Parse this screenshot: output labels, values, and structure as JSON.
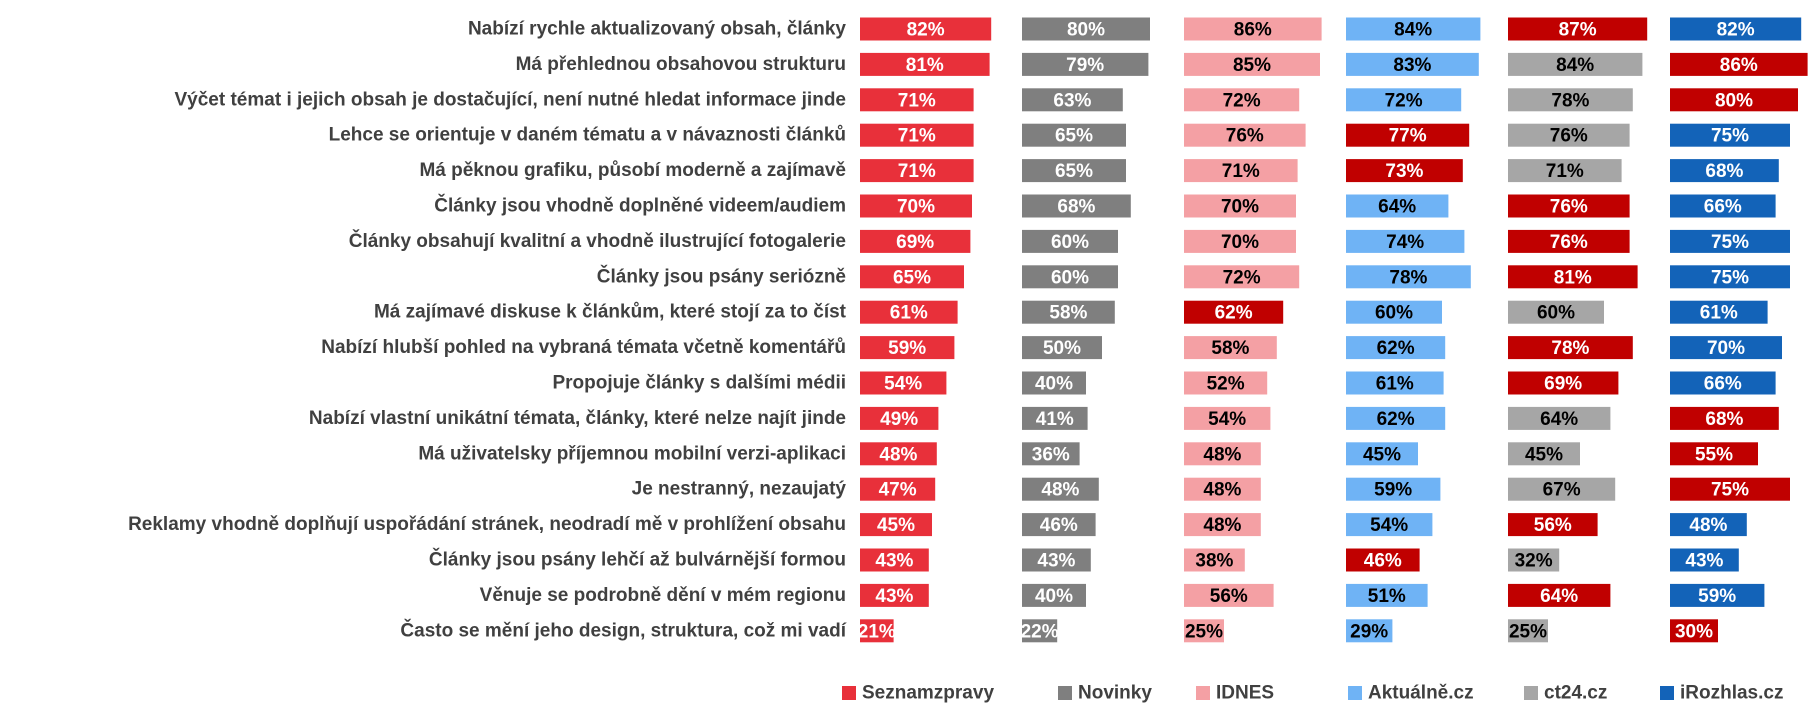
{
  "chart_data": {
    "type": "bar",
    "orientation": "horizontal",
    "categories": [
      "Nabízí rychle aktualizovaný obsah, články",
      "Má přehlednou obsahovou strukturu",
      "Výčet témat i jejich obsah je dostačující, není nutné hledat informace jinde",
      "Lehce se orientuje v daném tématu a v návaznosti článků",
      "Má pěknou grafiku, působí moderně a zajímavě",
      "Články jsou vhodně doplněné videem/audiem",
      "Články obsahují kvalitní a vhodně ilustrující fotogalerie",
      "Články jsou psány seriózně",
      "Má zajímavé diskuse k článkům, které stojí za to číst",
      "Nabízí hlubší pohled na vybraná témata včetně komentářů",
      "Propojuje články s dalšími médii",
      "Nabízí vlastní unikátní témata, články, které nelze najít jinde",
      "Má uživatelsky příjemnou mobilní verzi-aplikaci",
      "Je nestranný, nezaujatý",
      "Reklamy vhodně doplňují uspořádání stránek, neodradí mě v prohlížení obsahu",
      "Články jsou psány lehčí až bulvárnější formou",
      "Věnuje se podrobně dění v mém regionu",
      "Často se mění jeho design, struktura, což mi vadí"
    ],
    "xlim": [
      0,
      100
    ],
    "series": [
      {
        "name": "Seznamzpravy",
        "color": "#e8303a",
        "values": [
          82,
          81,
          71,
          71,
          71,
          70,
          69,
          65,
          61,
          59,
          54,
          49,
          48,
          47,
          45,
          43,
          43,
          21
        ],
        "value_labels": [
          "82%",
          "81%",
          "71%",
          "71%",
          "71%",
          "70%",
          "69%",
          "65%",
          "61%",
          "59%",
          "54%",
          "49%",
          "48%",
          "47%",
          "45%",
          "43%",
          "43%",
          "21%"
        ],
        "colors": [
          "#e8303a",
          "#e8303a",
          "#e8303a",
          "#e8303a",
          "#e8303a",
          "#e8303a",
          "#e8303a",
          "#e8303a",
          "#e8303a",
          "#e8303a",
          "#e8303a",
          "#e8303a",
          "#e8303a",
          "#e8303a",
          "#e8303a",
          "#e8303a",
          "#e8303a",
          "#e8303a"
        ]
      },
      {
        "name": "Novinky",
        "color": "#7f7f7f",
        "values": [
          80,
          79,
          63,
          65,
          65,
          68,
          60,
          60,
          58,
          50,
          40,
          41,
          36,
          48,
          46,
          43,
          40,
          22
        ],
        "value_labels": [
          "80%",
          "79%",
          "63%",
          "65%",
          "65%",
          "68%",
          "60%",
          "60%",
          "58%",
          "50%",
          "40%",
          "41%",
          "36%",
          "48%",
          "46%",
          "43%",
          "40%",
          "22%"
        ],
        "colors": [
          "#7f7f7f",
          "#7f7f7f",
          "#7f7f7f",
          "#7f7f7f",
          "#7f7f7f",
          "#7f7f7f",
          "#7f7f7f",
          "#7f7f7f",
          "#7f7f7f",
          "#7f7f7f",
          "#7f7f7f",
          "#7f7f7f",
          "#7f7f7f",
          "#7f7f7f",
          "#7f7f7f",
          "#7f7f7f",
          "#7f7f7f",
          "#7f7f7f"
        ]
      },
      {
        "name": "IDNES",
        "color": "#f4a0a4",
        "values": [
          86,
          85,
          72,
          76,
          71,
          70,
          70,
          72,
          62,
          58,
          52,
          54,
          48,
          48,
          48,
          38,
          56,
          25
        ],
        "value_labels": [
          "86%",
          "85%",
          "72%",
          "76%",
          "71%",
          "70%",
          "70%",
          "72%",
          "62%",
          "58%",
          "52%",
          "54%",
          "48%",
          "48%",
          "48%",
          "38%",
          "56%",
          "25%"
        ],
        "colors": [
          "#f4a0a4",
          "#f4a0a4",
          "#f4a0a4",
          "#f4a0a4",
          "#f4a0a4",
          "#f4a0a4",
          "#f4a0a4",
          "#f4a0a4",
          "#c00000",
          "#f4a0a4",
          "#f4a0a4",
          "#f4a0a4",
          "#f4a0a4",
          "#f4a0a4",
          "#f4a0a4",
          "#f4a0a4",
          "#f4a0a4",
          "#f4a0a4"
        ]
      },
      {
        "name": "Aktuálně.cz",
        "color": "#6fb3f5",
        "values": [
          84,
          83,
          72,
          77,
          73,
          64,
          74,
          78,
          60,
          62,
          61,
          62,
          45,
          59,
          54,
          46,
          51,
          29
        ],
        "value_labels": [
          "84%",
          "83%",
          "72%",
          "77%",
          "73%",
          "64%",
          "74%",
          "78%",
          "60%",
          "62%",
          "61%",
          "62%",
          "45%",
          "59%",
          "54%",
          "46%",
          "51%",
          "29%"
        ],
        "colors": [
          "#6fb3f5",
          "#6fb3f5",
          "#6fb3f5",
          "#c00000",
          "#c00000",
          "#6fb3f5",
          "#6fb3f5",
          "#6fb3f5",
          "#6fb3f5",
          "#6fb3f5",
          "#6fb3f5",
          "#6fb3f5",
          "#6fb3f5",
          "#6fb3f5",
          "#6fb3f5",
          "#c00000",
          "#6fb3f5",
          "#6fb3f5"
        ]
      },
      {
        "name": "ct24.cz",
        "color": "#a6a6a6",
        "values": [
          87,
          84,
          78,
          76,
          71,
          76,
          76,
          81,
          60,
          78,
          69,
          64,
          45,
          67,
          56,
          32,
          64,
          25
        ],
        "value_labels": [
          "87%",
          "84%",
          "78%",
          "76%",
          "71%",
          "76%",
          "76%",
          "81%",
          "60%",
          "78%",
          "69%",
          "64%",
          "45%",
          "67%",
          "56%",
          "32%",
          "64%",
          "25%"
        ],
        "colors": [
          "#c00000",
          "#a6a6a6",
          "#a6a6a6",
          "#a6a6a6",
          "#a6a6a6",
          "#c00000",
          "#c00000",
          "#c00000",
          "#a6a6a6",
          "#c00000",
          "#c00000",
          "#a6a6a6",
          "#a6a6a6",
          "#a6a6a6",
          "#c00000",
          "#a6a6a6",
          "#c00000",
          "#a6a6a6"
        ]
      },
      {
        "name": "iRozhlas.cz",
        "color": "#1363b8",
        "values": [
          82,
          86,
          80,
          75,
          68,
          66,
          75,
          75,
          61,
          70,
          66,
          68,
          55,
          75,
          48,
          43,
          59,
          30
        ],
        "value_labels": [
          "82%",
          "86%",
          "80%",
          "75%",
          "68%",
          "66%",
          "75%",
          "75%",
          "61%",
          "70%",
          "66%",
          "68%",
          "55%",
          "75%",
          "48%",
          "43%",
          "59%",
          "30%"
        ],
        "colors": [
          "#1363b8",
          "#c00000",
          "#c00000",
          "#1363b8",
          "#1363b8",
          "#1363b8",
          "#1363b8",
          "#1363b8",
          "#1363b8",
          "#1363b8",
          "#1363b8",
          "#c00000",
          "#c00000",
          "#c00000",
          "#1363b8",
          "#1363b8",
          "#1363b8",
          "#c00000"
        ]
      }
    ],
    "legend": "bottom"
  }
}
